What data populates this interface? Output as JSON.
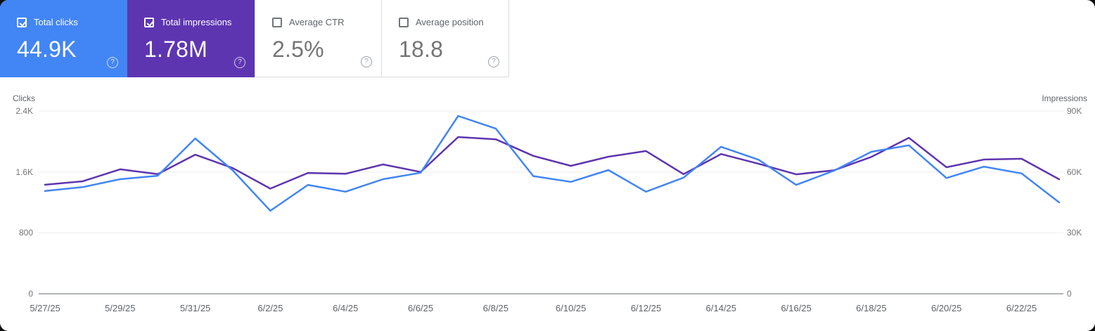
{
  "cards": [
    {
      "label": "Total clicks",
      "value": "44.9K",
      "checked": true,
      "color": "#4285f4",
      "help_icon": "?"
    },
    {
      "label": "Total impressions",
      "value": "1.78M",
      "checked": true,
      "color": "#5e35b1",
      "help_icon": "?"
    },
    {
      "label": "Average CTR",
      "value": "2.5%",
      "checked": false,
      "color": null,
      "help_icon": "?"
    },
    {
      "label": "Average position",
      "value": "18.8",
      "checked": false,
      "color": null,
      "help_icon": "?"
    }
  ],
  "chart_data": {
    "type": "line",
    "grid": true,
    "legend": "none",
    "left_axis": {
      "title": "Clicks",
      "ticks": [
        "2.4K",
        "1.6K",
        "800",
        "0"
      ],
      "max": 2400,
      "min": 0
    },
    "right_axis": {
      "title": "Impressions",
      "ticks": [
        "90K",
        "60K",
        "30K",
        "0"
      ],
      "max": 90000,
      "min": 0
    },
    "x_labels": [
      "5/27/25",
      "5/29/25",
      "5/31/25",
      "6/2/25",
      "6/4/25",
      "6/6/25",
      "6/8/25",
      "6/10/25",
      "6/12/25",
      "6/14/25",
      "6/16/25",
      "6/18/25",
      "6/20/25",
      "6/22/25"
    ],
    "x": [
      "5/27/25",
      "5/28/25",
      "5/29/25",
      "5/30/25",
      "5/31/25",
      "6/1/25",
      "6/2/25",
      "6/3/25",
      "6/4/25",
      "6/5/25",
      "6/6/25",
      "6/7/25",
      "6/8/25",
      "6/9/25",
      "6/10/25",
      "6/11/25",
      "6/12/25",
      "6/13/25",
      "6/14/25",
      "6/15/25",
      "6/16/25",
      "6/17/25",
      "6/18/25",
      "6/19/25",
      "6/20/25",
      "6/21/25",
      "6/22/25",
      "6/23/25"
    ],
    "series": [
      {
        "name": "Total clicks",
        "axis": "left",
        "color": "#4285f4",
        "values": [
          1350,
          1400,
          1505,
          1550,
          2040,
          1620,
          1090,
          1430,
          1340,
          1505,
          1590,
          2335,
          2170,
          1545,
          1470,
          1625,
          1340,
          1525,
          1930,
          1760,
          1430,
          1615,
          1865,
          1950,
          1520,
          1670,
          1580,
          1200
        ]
      },
      {
        "name": "Total impressions",
        "axis": "right",
        "color": "#5e35b1",
        "values": [
          53700,
          55400,
          61300,
          58900,
          68500,
          61900,
          51800,
          59500,
          59100,
          63700,
          60000,
          77200,
          76100,
          67900,
          63000,
          67500,
          70300,
          58900,
          68800,
          64000,
          58800,
          60800,
          67400,
          76800,
          62300,
          66100,
          66500,
          56400
        ]
      }
    ]
  }
}
